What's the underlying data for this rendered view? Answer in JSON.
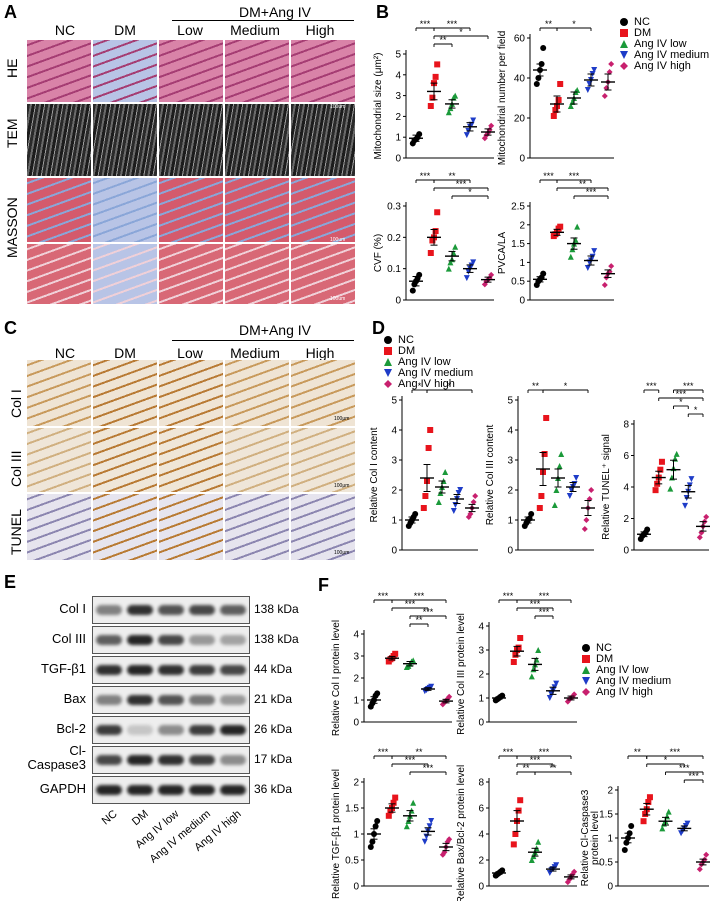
{
  "panels": {
    "A": "A",
    "B": "B",
    "C": "C",
    "D": "D",
    "E": "E",
    "F": "F"
  },
  "groups": {
    "nc": "NC",
    "dm": "DM",
    "angiv_group": "DM+Ang IV",
    "low": "Low",
    "medium": "Medium",
    "high": "High"
  },
  "panelA": {
    "rows": [
      "HE",
      "TEM",
      "MASSON"
    ],
    "scalebars": [
      "100um",
      "100um",
      "100um"
    ]
  },
  "panelC": {
    "rows": [
      "Col I",
      "Col III",
      "TUNEL"
    ],
    "scalebars": [
      "100μm",
      "100μm",
      "100μm"
    ]
  },
  "legend": {
    "items": [
      "NC",
      "DM",
      "Ang IV low",
      "Ang IV medium",
      "Ang IV high"
    ],
    "colors": [
      "#000000",
      "#e8141c",
      "#1b9a3a",
      "#1e3cc8",
      "#c8206e"
    ],
    "shapes": [
      "circle",
      "square",
      "triangle-up",
      "triangle-down",
      "diamond"
    ]
  },
  "western": {
    "bands": [
      {
        "name": "Col I",
        "kda": "138 kDa"
      },
      {
        "name": "Col III",
        "kda": "138 kDa"
      },
      {
        "name": "TGF-β1",
        "kda": "44 kDa"
      },
      {
        "name": "Bax",
        "kda": "21 kDa"
      },
      {
        "name": "Bcl-2",
        "kda": "26 kDa"
      },
      {
        "name": "Cl-\nCaspase3",
        "kda": "17 kDa"
      },
      {
        "name": "GAPDH",
        "kda": "36 kDa"
      }
    ],
    "lanes": [
      "NC",
      "DM",
      "Ang IV low",
      "Ang IV medium",
      "Ang IV high"
    ]
  },
  "chart_data": [
    {
      "id": "B1",
      "type": "scatter",
      "ylabel": "Mitochondrial size (μm²)",
      "ylim": [
        0,
        5
      ],
      "yticks": [
        0,
        1,
        2,
        3,
        4,
        5
      ],
      "means": [
        0.95,
        3.2,
        2.6,
        1.5,
        1.25
      ],
      "errors": [
        0.15,
        0.4,
        0.2,
        0.2,
        0.15
      ],
      "points": [
        [
          0.7,
          0.85,
          0.9,
          1.0,
          1.15
        ],
        [
          2.5,
          2.9,
          3.6,
          3.9,
          4.5
        ],
        [
          2.2,
          2.4,
          2.6,
          2.9,
          3.0
        ],
        [
          1.1,
          1.3,
          1.5,
          1.6,
          1.8
        ],
        [
          0.95,
          1.1,
          1.2,
          1.35,
          1.55
        ]
      ],
      "sig": [
        {
          "a": 0,
          "b": 1,
          "t": "***",
          "lvl": 0
        },
        {
          "a": 1,
          "b": 3,
          "t": "***",
          "lvl": 0
        },
        {
          "a": 1,
          "b": 4,
          "t": "*",
          "lvl": 1
        },
        {
          "a": 1,
          "b": 2,
          "t": "**",
          "lvl": 2
        }
      ]
    },
    {
      "id": "B2",
      "type": "scatter",
      "ylabel": "Mitochondrial number per field",
      "ylim": [
        0,
        60
      ],
      "yticks": [
        0,
        20,
        40,
        60
      ],
      "means": [
        44,
        27,
        30,
        39,
        38
      ],
      "errors": [
        3,
        4,
        3,
        3,
        4
      ],
      "points": [
        [
          37,
          40,
          44,
          47,
          55
        ],
        [
          21,
          24,
          26,
          29,
          37
        ],
        [
          26,
          28,
          30,
          33,
          34
        ],
        [
          34,
          37,
          39,
          42,
          44
        ],
        [
          31,
          35,
          38,
          43,
          47
        ]
      ],
      "sig": [
        {
          "a": 0,
          "b": 1,
          "t": "**",
          "lvl": 0
        },
        {
          "a": 1,
          "b": 3,
          "t": "*",
          "lvl": 0
        }
      ]
    },
    {
      "id": "B3",
      "type": "scatter",
      "ylabel": "CVF (%)",
      "ylim": [
        0,
        0.3
      ],
      "yticks": [
        0,
        0.1,
        0.2,
        0.3
      ],
      "means": [
        0.06,
        0.2,
        0.14,
        0.1,
        0.065
      ],
      "errors": [
        0.015,
        0.025,
        0.015,
        0.012,
        0.008
      ],
      "points": [
        [
          0.03,
          0.05,
          0.06,
          0.07,
          0.08
        ],
        [
          0.15,
          0.19,
          0.2,
          0.22,
          0.28
        ],
        [
          0.1,
          0.12,
          0.13,
          0.15,
          0.17
        ],
        [
          0.07,
          0.09,
          0.1,
          0.11,
          0.12
        ],
        [
          0.05,
          0.06,
          0.065,
          0.07,
          0.08
        ]
      ],
      "sig": [
        {
          "a": 0,
          "b": 1,
          "t": "***",
          "lvl": 0
        },
        {
          "a": 1,
          "b": 3,
          "t": "**",
          "lvl": 0
        },
        {
          "a": 1,
          "b": 4,
          "t": "***",
          "lvl": 1
        },
        {
          "a": 2,
          "b": 4,
          "t": "*",
          "lvl": 2
        }
      ]
    },
    {
      "id": "B4",
      "type": "scatter",
      "ylabel": "PVCA/LA",
      "ylim": [
        0,
        2.5
      ],
      "yticks": [
        0,
        0.5,
        1.0,
        1.5,
        2.0,
        2.5
      ],
      "means": [
        0.55,
        1.8,
        1.5,
        1.05,
        0.7
      ],
      "errors": [
        0.07,
        0.08,
        0.15,
        0.12,
        0.1
      ],
      "points": [
        [
          0.4,
          0.5,
          0.55,
          0.6,
          0.7
        ],
        [
          1.7,
          1.75,
          1.8,
          1.9,
          1.95
        ],
        [
          1.15,
          1.35,
          1.5,
          1.6,
          1.95
        ],
        [
          0.85,
          1.0,
          1.05,
          1.15,
          1.3
        ],
        [
          0.4,
          0.6,
          0.7,
          0.75,
          0.9
        ]
      ],
      "sig": [
        {
          "a": 0,
          "b": 1,
          "t": "***",
          "lvl": 0
        },
        {
          "a": 1,
          "b": 3,
          "t": "***",
          "lvl": 0
        },
        {
          "a": 1,
          "b": 4,
          "t": "**",
          "lvl": 1
        },
        {
          "a": 2,
          "b": 4,
          "t": "***",
          "lvl": 2
        }
      ]
    },
    {
      "id": "D1",
      "type": "scatter",
      "ylabel": "Relative Col I content",
      "ylim": [
        0,
        5
      ],
      "yticks": [
        0,
        1,
        2,
        3,
        4,
        5
      ],
      "means": [
        1.0,
        2.4,
        2.1,
        1.7,
        1.4
      ],
      "errors": [
        0.1,
        0.45,
        0.2,
        0.15,
        0.12
      ],
      "points": [
        [
          0.8,
          0.9,
          1.0,
          1.1,
          1.2
        ],
        [
          1.4,
          1.8,
          2.3,
          3.4,
          4.0
        ],
        [
          1.6,
          1.9,
          2.1,
          2.3,
          2.6
        ],
        [
          1.3,
          1.5,
          1.7,
          1.9,
          2.0
        ],
        [
          1.1,
          1.2,
          1.4,
          1.6,
          1.8
        ]
      ],
      "sig": [
        {
          "a": 0,
          "b": 1,
          "t": "*",
          "lvl": 0
        },
        {
          "a": 1,
          "b": 4,
          "t": "*",
          "lvl": 0
        }
      ]
    },
    {
      "id": "D2",
      "type": "scatter",
      "ylabel": "Relative Col III content",
      "ylim": [
        0,
        5
      ],
      "yticks": [
        0,
        1,
        2,
        3,
        4,
        5
      ],
      "means": [
        1.0,
        2.7,
        2.4,
        2.1,
        1.4
      ],
      "errors": [
        0.1,
        0.55,
        0.3,
        0.15,
        0.25
      ],
      "points": [
        [
          0.8,
          0.9,
          1.0,
          1.05,
          1.2
        ],
        [
          1.4,
          1.8,
          2.6,
          3.2,
          4.4
        ],
        [
          1.5,
          2.0,
          2.4,
          2.8,
          3.2
        ],
        [
          1.8,
          2.0,
          2.1,
          2.2,
          2.4
        ],
        [
          0.7,
          1.0,
          1.4,
          1.7,
          2.0
        ]
      ],
      "sig": [
        {
          "a": 0,
          "b": 1,
          "t": "**",
          "lvl": 0
        },
        {
          "a": 1,
          "b": 4,
          "t": "*",
          "lvl": 0
        }
      ]
    },
    {
      "id": "D3",
      "type": "scatter",
      "ylabel": "Relative TUNEL⁺ signal",
      "ylim": [
        0,
        8
      ],
      "yticks": [
        0,
        2,
        4,
        6,
        8
      ],
      "means": [
        1.0,
        4.6,
        5.1,
        3.7,
        1.5
      ],
      "errors": [
        0.15,
        0.4,
        0.6,
        0.4,
        0.3
      ],
      "points": [
        [
          0.7,
          0.9,
          1.0,
          1.1,
          1.3
        ],
        [
          3.8,
          4.2,
          4.6,
          5.1,
          5.6
        ],
        [
          3.9,
          4.6,
          5.2,
          5.8,
          6.1
        ],
        [
          2.8,
          3.3,
          3.7,
          4.1,
          4.5
        ],
        [
          0.8,
          1.1,
          1.5,
          1.8,
          2.1
        ]
      ],
      "sig": [
        {
          "a": 0,
          "b": 1,
          "t": "***",
          "lvl": 0
        },
        {
          "a": 1,
          "b": 4,
          "t": "***",
          "lvl": 1
        },
        {
          "a": 2,
          "b": 4,
          "t": "***",
          "lvl": 0
        },
        {
          "a": 2,
          "b": 3,
          "t": "*",
          "lvl": 2
        },
        {
          "a": 3,
          "b": 4,
          "t": "*",
          "lvl": 3
        }
      ]
    },
    {
      "id": "F1",
      "type": "scatter",
      "ylabel": "Relative Col I protein level",
      "ylim": [
        0,
        4
      ],
      "yticks": [
        0,
        1,
        2,
        3,
        4
      ],
      "means": [
        1.0,
        2.9,
        2.65,
        1.5,
        0.95
      ],
      "errors": [
        0.15,
        0.08,
        0.1,
        0.06,
        0.08
      ],
      "points": [
        [
          0.7,
          0.85,
          1.0,
          1.2,
          1.3
        ],
        [
          2.75,
          2.85,
          2.9,
          3.0,
          3.1
        ],
        [
          2.5,
          2.55,
          2.65,
          2.75,
          2.8
        ],
        [
          1.4,
          1.45,
          1.5,
          1.55,
          1.6
        ],
        [
          0.8,
          0.9,
          0.95,
          1.05,
          1.15
        ]
      ],
      "sig": [
        {
          "a": 0,
          "b": 1,
          "t": "***",
          "lvl": 0
        },
        {
          "a": 1,
          "b": 4,
          "t": "***",
          "lvl": 0
        },
        {
          "a": 1,
          "b": 3,
          "t": "***",
          "lvl": 1
        },
        {
          "a": 2,
          "b": 4,
          "t": "***",
          "lvl": 2
        },
        {
          "a": 2,
          "b": 3,
          "t": "**",
          "lvl": 3
        }
      ]
    },
    {
      "id": "F2",
      "type": "scatter",
      "ylabel": "Relative Col III protein level",
      "ylim": [
        0,
        4
      ],
      "yticks": [
        0,
        1,
        2,
        3,
        4
      ],
      "means": [
        1.0,
        2.95,
        2.4,
        1.3,
        1.0
      ],
      "errors": [
        0.05,
        0.2,
        0.25,
        0.15,
        0.08
      ],
      "points": [
        [
          0.9,
          0.95,
          1.0,
          1.05,
          1.1
        ],
        [
          2.5,
          2.8,
          3.0,
          3.1,
          3.5
        ],
        [
          1.9,
          2.2,
          2.4,
          2.6,
          3.0
        ],
        [
          1.0,
          1.15,
          1.3,
          1.45,
          1.6
        ],
        [
          0.85,
          0.95,
          1.0,
          1.05,
          1.15
        ]
      ],
      "sig": [
        {
          "a": 0,
          "b": 1,
          "t": "***",
          "lvl": 0
        },
        {
          "a": 1,
          "b": 4,
          "t": "***",
          "lvl": 0
        },
        {
          "a": 1,
          "b": 3,
          "t": "***",
          "lvl": 1
        },
        {
          "a": 2,
          "b": 3,
          "t": "***",
          "lvl": 2
        }
      ]
    },
    {
      "id": "F3",
      "type": "scatter",
      "ylabel": "Relative TGF-β1 protein level",
      "ylim": [
        0,
        2.0
      ],
      "yticks": [
        0,
        0.5,
        1.0,
        1.5,
        2.0
      ],
      "means": [
        1.0,
        1.5,
        1.35,
        1.05,
        0.75
      ],
      "errors": [
        0.1,
        0.08,
        0.1,
        0.07,
        0.07
      ],
      "points": [
        [
          0.75,
          0.85,
          1.0,
          1.15,
          1.25
        ],
        [
          1.35,
          1.45,
          1.5,
          1.6,
          1.7
        ],
        [
          1.15,
          1.25,
          1.35,
          1.45,
          1.6
        ],
        [
          0.85,
          0.95,
          1.05,
          1.15,
          1.25
        ],
        [
          0.6,
          0.65,
          0.75,
          0.85,
          0.9
        ]
      ],
      "sig": [
        {
          "a": 0,
          "b": 1,
          "t": "***",
          "lvl": 0
        },
        {
          "a": 1,
          "b": 4,
          "t": "**",
          "lvl": 0
        },
        {
          "a": 1,
          "b": 3,
          "t": "***",
          "lvl": 1
        },
        {
          "a": 2,
          "b": 4,
          "t": "***",
          "lvl": 2
        }
      ]
    },
    {
      "id": "F4",
      "type": "scatter",
      "ylabel": "Relative Bax/Bcl-2 protein level",
      "ylim": [
        0,
        8
      ],
      "yticks": [
        0,
        2,
        4,
        6,
        8
      ],
      "means": [
        1.0,
        5.0,
        2.6,
        1.3,
        0.7
      ],
      "errors": [
        0.1,
        0.8,
        0.3,
        0.15,
        0.15
      ],
      "points": [
        [
          0.8,
          0.9,
          1.0,
          1.1,
          1.2
        ],
        [
          3.2,
          4.0,
          5.0,
          5.8,
          6.6
        ],
        [
          2.0,
          2.3,
          2.6,
          2.9,
          3.4
        ],
        [
          1.0,
          1.2,
          1.3,
          1.45,
          1.6
        ],
        [
          0.3,
          0.5,
          0.7,
          0.9,
          1.1
        ]
      ],
      "sig": [
        {
          "a": 0,
          "b": 1,
          "t": "***",
          "lvl": 0
        },
        {
          "a": 1,
          "b": 4,
          "t": "***",
          "lvl": 0
        },
        {
          "a": 1,
          "b": 3,
          "t": "***",
          "lvl": 1
        },
        {
          "a": 1,
          "b": 2,
          "t": "**",
          "lvl": 2
        },
        {
          "a": 2,
          "b": 4,
          "t": "**",
          "lvl": 2
        }
      ]
    },
    {
      "id": "F5",
      "type": "scatter",
      "ylabel": "Relative Cl-Caspase3\nprotein level",
      "ylim": [
        0,
        2.0
      ],
      "yticks": [
        0,
        0.5,
        1.0,
        1.5,
        2.0
      ],
      "means": [
        1.0,
        1.6,
        1.35,
        1.2,
        0.5
      ],
      "errors": [
        0.1,
        0.12,
        0.08,
        0.05,
        0.06
      ],
      "points": [
        [
          0.75,
          0.9,
          1.0,
          1.1,
          1.25
        ],
        [
          1.35,
          1.5,
          1.6,
          1.75,
          1.85
        ],
        [
          1.2,
          1.3,
          1.35,
          1.45,
          1.55
        ],
        [
          1.1,
          1.15,
          1.2,
          1.25,
          1.3
        ],
        [
          0.35,
          0.45,
          0.5,
          0.55,
          0.65
        ]
      ],
      "sig": [
        {
          "a": 0,
          "b": 1,
          "t": "**",
          "lvl": 0
        },
        {
          "a": 1,
          "b": 4,
          "t": "***",
          "lvl": 0
        },
        {
          "a": 1,
          "b": 3,
          "t": "*",
          "lvl": 1
        },
        {
          "a": 2,
          "b": 4,
          "t": "***",
          "lvl": 2
        },
        {
          "a": 3,
          "b": 4,
          "t": "***",
          "lvl": 3
        }
      ]
    }
  ]
}
